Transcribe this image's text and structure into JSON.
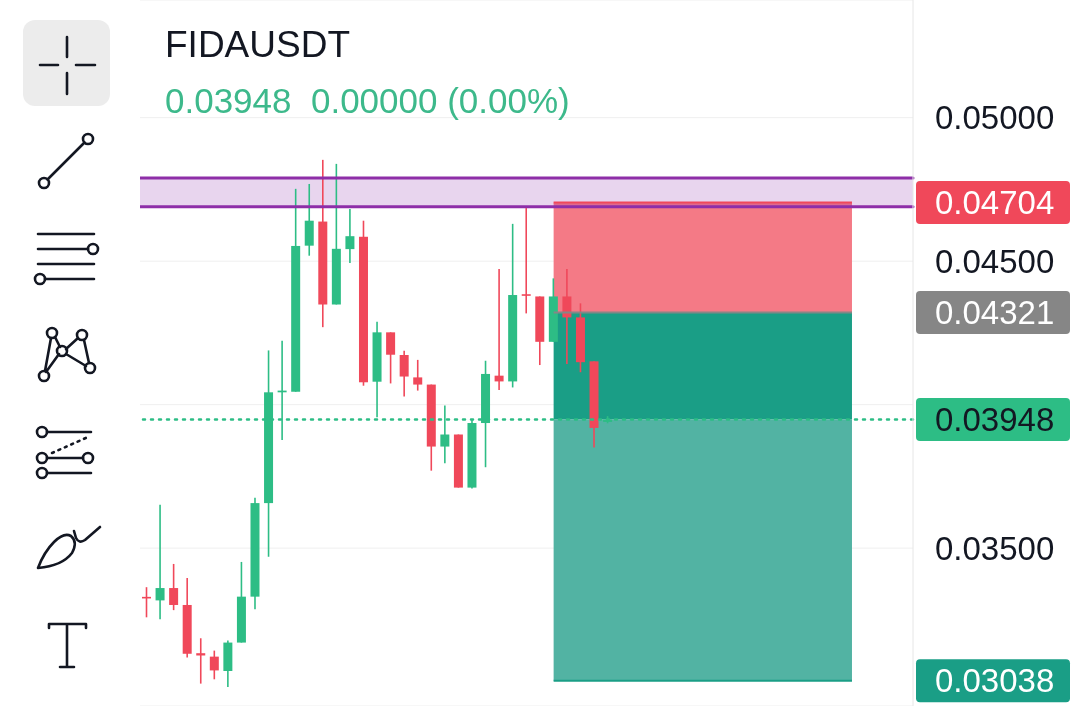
{
  "chart_data": {
    "type": "candlestick",
    "title": "FIDAUSDT",
    "subtitle": "0.03948  0.00000 (0.00%)",
    "categories": [
      null,
      null,
      null,
      null,
      null,
      null,
      null,
      null,
      null,
      null,
      null,
      null,
      null,
      null,
      null,
      null,
      null,
      null,
      null,
      null,
      null,
      null,
      null,
      null,
      null,
      null,
      null,
      null,
      null,
      null,
      null,
      null,
      null,
      null,
      null,
      null,
      null,
      null,
      null,
      null,
      null,
      null,
      null,
      null,
      null,
      null,
      null,
      null,
      null,
      null,
      null,
      null,
      null,
      null,
      null,
      null,
      null
    ],
    "ohlc": [
      [
        0.0333,
        0.03364,
        0.03259,
        0.03325
      ],
      [
        0.03318,
        0.03651,
        0.03252,
        0.03361
      ],
      [
        0.03361,
        0.03445,
        0.03284,
        0.03302
      ],
      [
        0.03302,
        0.03396,
        0.03119,
        0.03132
      ],
      [
        0.03134,
        0.03186,
        0.03028,
        0.03126
      ],
      [
        0.03122,
        0.03143,
        0.03043,
        0.03074
      ],
      [
        0.03072,
        0.03178,
        0.03016,
        0.03171
      ],
      [
        0.03171,
        0.03452,
        0.03171,
        0.03331
      ],
      [
        0.03331,
        0.03676,
        0.03287,
        0.03657
      ],
      [
        0.03657,
        0.04189,
        0.0347,
        0.04043
      ],
      [
        0.04043,
        0.04223,
        0.03877,
        0.04049
      ],
      [
        0.04045,
        0.04752,
        0.04045,
        0.04553
      ],
      [
        0.04554,
        0.04769,
        0.04519,
        0.04641
      ],
      [
        0.04638,
        0.04853,
        0.0427,
        0.04349
      ],
      [
        0.04349,
        0.04839,
        0.04349,
        0.04543
      ],
      [
        0.04542,
        0.04682,
        0.04494,
        0.04587
      ],
      [
        0.04585,
        0.04641,
        0.04066,
        0.04078
      ],
      [
        0.0408,
        0.04289,
        0.03956,
        0.04252
      ],
      [
        0.04252,
        0.04252,
        0.04074,
        0.04174
      ],
      [
        0.04173,
        0.04188,
        0.04028,
        0.04098
      ],
      [
        0.04095,
        0.04156,
        0.04049,
        0.0407
      ],
      [
        0.0407,
        0.0407,
        0.0377,
        0.03854
      ],
      [
        0.03854,
        0.03997,
        0.03796,
        0.03896
      ],
      [
        0.03896,
        0.03896,
        0.03711,
        0.03711
      ],
      [
        0.03711,
        0.0395,
        0.03708,
        0.03936
      ],
      [
        0.03936,
        0.04153,
        0.03782,
        0.04107
      ],
      [
        0.04101,
        0.04473,
        0.04051,
        0.04081
      ],
      [
        0.04081,
        0.0463,
        0.0406,
        0.04382
      ],
      [
        0.04384,
        0.04685,
        0.04318,
        0.0438
      ],
      [
        0.04377,
        0.04377,
        0.04138,
        0.04219
      ],
      [
        0.04219,
        0.0444,
        0.04219,
        0.04377
      ],
      [
        0.04377,
        0.04473,
        0.04142,
        0.04304
      ],
      [
        0.04304,
        0.04353,
        0.04113,
        0.04148
      ],
      [
        0.04151,
        0.04151,
        0.03851,
        0.03919
      ],
      [
        0.0394,
        0.0396,
        0.03935,
        0.03948
      ],
      null,
      null,
      null,
      null,
      null,
      null,
      null,
      null,
      null,
      null,
      null,
      null,
      null,
      null,
      null,
      null,
      null,
      null,
      null,
      null,
      null,
      null
    ],
    "colors": [
      "#f0485a",
      "#2dbd85",
      "#f0485a",
      "#f0485a",
      "#f0485a",
      "#f0485a",
      "#2dbd85",
      "#2dbd85",
      "#2dbd85",
      "#2dbd85",
      "#2dbd85",
      "#2dbd85",
      "#2dbd85",
      "#f0485a",
      "#2dbd85",
      "#2dbd85",
      "#f0485a",
      "#2dbd85",
      "#f0485a",
      "#f0485a",
      "#f0485a",
      "#f0485a",
      "#2dbd85",
      "#f0485a",
      "#2dbd85",
      "#2dbd85",
      "#f0485a",
      "#2dbd85",
      "#f0485a",
      "#f0485a",
      "#2dbd85",
      "#f0485a",
      "#f0485a",
      "#f0485a",
      "#2dbd85",
      null,
      null,
      null,
      null,
      null,
      null,
      null,
      null,
      null,
      null,
      null,
      null,
      null,
      null,
      null,
      null,
      null,
      null,
      null,
      null,
      null,
      null
    ],
    "ylim": [
      0.0295,
      0.0541
    ],
    "yticks": [
      {
        "value": 0.035,
        "label": "0.03500"
      },
      {
        "value": 0.04,
        "label": null
      },
      {
        "value": 0.045,
        "label": "0.04500"
      },
      {
        "value": 0.05,
        "label": "0.05000"
      }
    ],
    "bands": [
      {
        "axis": "y",
        "from": 0.0469,
        "to": 0.0479,
        "color": "#8e2ea8"
      }
    ],
    "ref_lines": [
      {
        "axis": "y",
        "value": 0.04704,
        "label": "0.04704",
        "color": "#f0485a",
        "line_style": "solid"
      },
      {
        "axis": "y",
        "value": 0.04321,
        "label": "0.04321",
        "color": "#868686",
        "line_style": "solid"
      },
      {
        "axis": "y",
        "value": 0.03948,
        "label": "0.03948",
        "color": "#2dbd85",
        "line_style": "dotted"
      },
      {
        "axis": "y",
        "value": 0.03038,
        "label": "0.03038",
        "color": "#1a9e86",
        "line_style": "solid"
      },
      {
        "axis": "y",
        "value": 0.0479,
        "color": "#8e2ea8",
        "line_style": "solid"
      },
      {
        "axis": "y",
        "value": 0.0469,
        "color": "#8e2ea8",
        "line_style": "solid"
      }
    ],
    "grid": "y",
    "tick_labels": "y"
  }
}
